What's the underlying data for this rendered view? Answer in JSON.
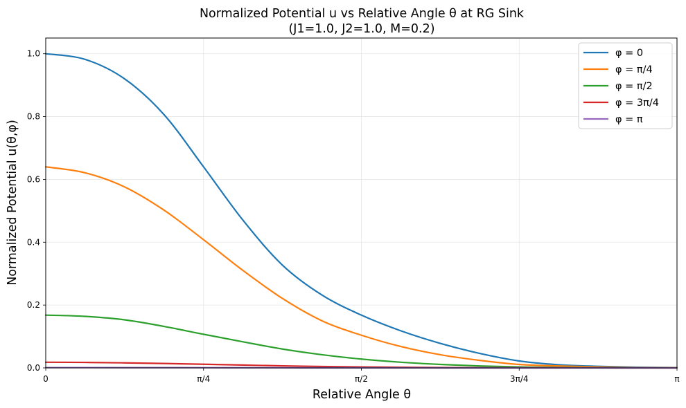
{
  "chart_data": {
    "type": "line",
    "title": "Normalized Potential u vs Relative Angle θ at RG Sink",
    "subtitle": "(J1=1.0, J2=1.0, M=0.2)",
    "xlabel": "Relative Angle θ",
    "ylabel": "Normalized Potential u(θ,φ)",
    "xlim": [
      0,
      3.14159
    ],
    "ylim": [
      0,
      1.05
    ],
    "grid": true,
    "legend_position": "top-right",
    "x_ticks": [
      {
        "value": 0,
        "label": "0"
      },
      {
        "value": 0.7854,
        "label": "π/4"
      },
      {
        "value": 1.5708,
        "label": "π/2"
      },
      {
        "value": 2.3562,
        "label": "3π/4"
      },
      {
        "value": 3.14159,
        "label": "π"
      }
    ],
    "y_ticks": [
      {
        "value": 0,
        "label": "0.0"
      },
      {
        "value": 0.2,
        "label": "0.2"
      },
      {
        "value": 0.4,
        "label": "0.4"
      },
      {
        "value": 0.6,
        "label": "0.6"
      },
      {
        "value": 0.8,
        "label": "0.8"
      },
      {
        "value": 1.0,
        "label": "1.0"
      }
    ],
    "x": [
      0,
      0.19635,
      0.3927,
      0.58905,
      0.7854,
      0.98175,
      1.1781,
      1.37445,
      1.5708,
      1.76715,
      1.9635,
      2.15985,
      2.3562,
      2.55255,
      2.7489,
      2.94525,
      3.14159
    ],
    "series": [
      {
        "name": "φ = 0",
        "color": "#1f77b4",
        "values": [
          1.0,
          0.982,
          0.92,
          0.806,
          0.64,
          0.47,
          0.327,
          0.232,
          0.168,
          0.118,
          0.078,
          0.046,
          0.022,
          0.01,
          0.005,
          0.002,
          0.001
        ]
      },
      {
        "name": "φ = π/4",
        "color": "#ff7f0e",
        "values": [
          0.64,
          0.621,
          0.576,
          0.502,
          0.408,
          0.31,
          0.221,
          0.15,
          0.104,
          0.068,
          0.042,
          0.024,
          0.011,
          0.006,
          0.003,
          0.001,
          0.0005
        ]
      },
      {
        "name": "φ = π/2",
        "color": "#2ca02c",
        "values": [
          0.168,
          0.164,
          0.153,
          0.132,
          0.107,
          0.083,
          0.06,
          0.042,
          0.028,
          0.018,
          0.011,
          0.006,
          0.003,
          0.0015,
          0.0007,
          0.0003,
          0.0002
        ]
      },
      {
        "name": "φ = 3π/4",
        "color": "#d62728",
        "values": [
          0.018,
          0.0175,
          0.016,
          0.014,
          0.0115,
          0.009,
          0.0065,
          0.0045,
          0.003,
          0.002,
          0.0012,
          0.0007,
          0.0004,
          0.0002,
          0.0001,
          5e-05,
          2e-05
        ]
      },
      {
        "name": "φ = π",
        "color": "#9467bd",
        "values": [
          0.001,
          0.001,
          0.0009,
          0.0008,
          0.0007,
          0.0005,
          0.0004,
          0.0003,
          0.0002,
          0.0001,
          7e-05,
          4e-05,
          2e-05,
          1e-05,
          0.0,
          0.0,
          0.0
        ]
      }
    ]
  }
}
